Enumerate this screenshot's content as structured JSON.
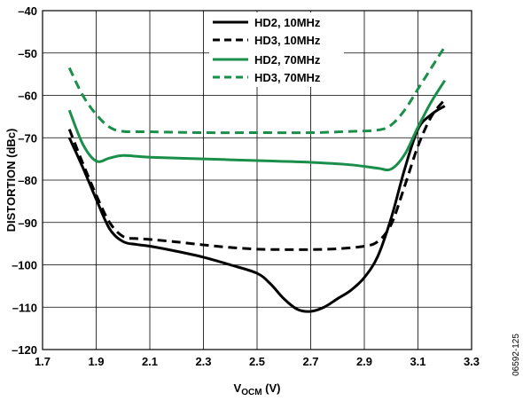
{
  "figure_id": "06592-125",
  "chart_data": {
    "type": "line",
    "title": "",
    "xlabel_main": "V",
    "xlabel_sub": "OCM",
    "xlabel_unit": " (V)",
    "ylabel": "DISTORTION (dBc)",
    "xlim": [
      1.7,
      3.3
    ],
    "ylim": [
      -120,
      -40
    ],
    "xticks": [
      1.7,
      1.9,
      2.1,
      2.3,
      2.5,
      2.7,
      2.9,
      3.1,
      3.3
    ],
    "xtick_labels": [
      "1.7",
      "1.9",
      "2.1",
      "2.3",
      "2.5",
      "2.7",
      "2.9",
      "3.1",
      "3.3"
    ],
    "yticks": [
      -40,
      -50,
      -60,
      -70,
      -80,
      -90,
      -100,
      -110,
      -120
    ],
    "ytick_labels": [
      "–40",
      "–50",
      "–60",
      "–70",
      "–80",
      "–90",
      "–100",
      "–110",
      "–120"
    ],
    "grid": true,
    "legend_position": "top-center",
    "series": [
      {
        "name": "HD2, 10MHz",
        "color": "#000000",
        "dash": "solid",
        "x": [
          1.8,
          1.85,
          1.9,
          1.95,
          2.0,
          2.05,
          2.1,
          2.2,
          2.3,
          2.4,
          2.5,
          2.55,
          2.6,
          2.65,
          2.7,
          2.75,
          2.8,
          2.85,
          2.9,
          2.95,
          3.0,
          3.05,
          3.1,
          3.15,
          3.2
        ],
        "y": [
          -70.0,
          -77.0,
          -84.5,
          -91.5,
          -94.5,
          -95.2,
          -95.6,
          -96.8,
          -98.2,
          -100.0,
          -102.0,
          -104.5,
          -108.0,
          -110.5,
          -111.0,
          -110.0,
          -108.0,
          -106.0,
          -103.0,
          -98.0,
          -89.0,
          -77.5,
          -68.0,
          -64.5,
          -62.5
        ]
      },
      {
        "name": "HD3, 10MHz",
        "color": "#000000",
        "dash": "dashed",
        "x": [
          1.8,
          1.85,
          1.9,
          1.95,
          2.0,
          2.05,
          2.1,
          2.2,
          2.3,
          2.4,
          2.5,
          2.6,
          2.7,
          2.8,
          2.9,
          2.95,
          3.0,
          3.05,
          3.1,
          3.15,
          3.2
        ],
        "y": [
          -68.0,
          -76.0,
          -83.5,
          -90.0,
          -93.3,
          -93.8,
          -94.0,
          -94.6,
          -95.3,
          -95.9,
          -96.3,
          -96.4,
          -96.4,
          -96.2,
          -95.6,
          -94.5,
          -90.5,
          -81.5,
          -72.0,
          -65.0,
          -61.0
        ]
      },
      {
        "name": "HD2, 70MHz",
        "color": "#1a8f4a",
        "dash": "solid",
        "x": [
          1.8,
          1.85,
          1.9,
          1.95,
          2.0,
          2.1,
          2.3,
          2.5,
          2.7,
          2.85,
          2.95,
          3.0,
          3.05,
          3.1,
          3.15,
          3.2
        ],
        "y": [
          -63.5,
          -71.5,
          -75.5,
          -74.8,
          -74.2,
          -74.6,
          -75.0,
          -75.4,
          -75.8,
          -76.4,
          -77.2,
          -77.4,
          -74.0,
          -67.5,
          -61.5,
          -56.5
        ]
      },
      {
        "name": "HD3, 70MHz",
        "color": "#1a8f4a",
        "dash": "dashed",
        "x": [
          1.8,
          1.85,
          1.9,
          1.95,
          2.0,
          2.1,
          2.3,
          2.5,
          2.7,
          2.85,
          2.95,
          3.0,
          3.05,
          3.1,
          3.15,
          3.2
        ],
        "y": [
          -53.5,
          -60.0,
          -64.5,
          -67.5,
          -68.5,
          -68.6,
          -68.8,
          -68.8,
          -68.8,
          -68.5,
          -68.2,
          -67.0,
          -63.5,
          -58.5,
          -53.5,
          -48.5
        ]
      }
    ]
  }
}
